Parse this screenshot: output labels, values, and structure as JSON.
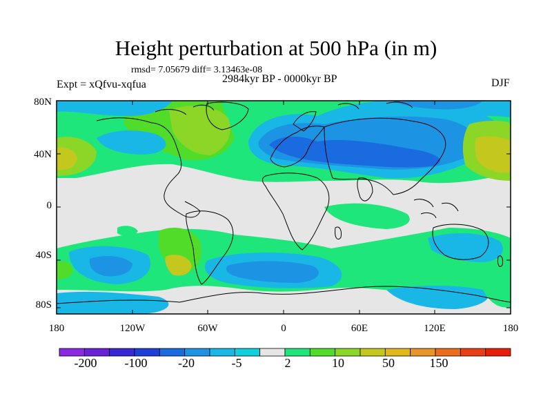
{
  "title": "Height perturbation at 500 hPa (in m)",
  "stats": "rmsd= 7.05679 diff= 3.13463e-08",
  "experiment": "Expt = xQfvu-xqfua",
  "period": "2984kyr BP - 0000kyr BP",
  "season": "DJF",
  "lat_labels": [
    "80N",
    "40N",
    "0",
    "40S",
    "80S"
  ],
  "lon_labels": [
    "180",
    "120W",
    "60W",
    "0",
    "60E",
    "120E",
    "180"
  ],
  "colorbar": {
    "colors": [
      "#8a2be2",
      "#6a1fd8",
      "#3a28d6",
      "#1e3fd8",
      "#1a6be0",
      "#1d93e3",
      "#19b7e6",
      "#0fd0dc",
      "#e6e6e6",
      "#1ee67a",
      "#52dc2a",
      "#8cd628",
      "#c4c81e",
      "#e0b81e",
      "#e89628",
      "#ec6e1c",
      "#e84014",
      "#e61e0a"
    ],
    "labels": [
      "-200",
      "-100",
      "-20",
      "-5",
      "2",
      "10",
      "50",
      "150"
    ]
  }
}
